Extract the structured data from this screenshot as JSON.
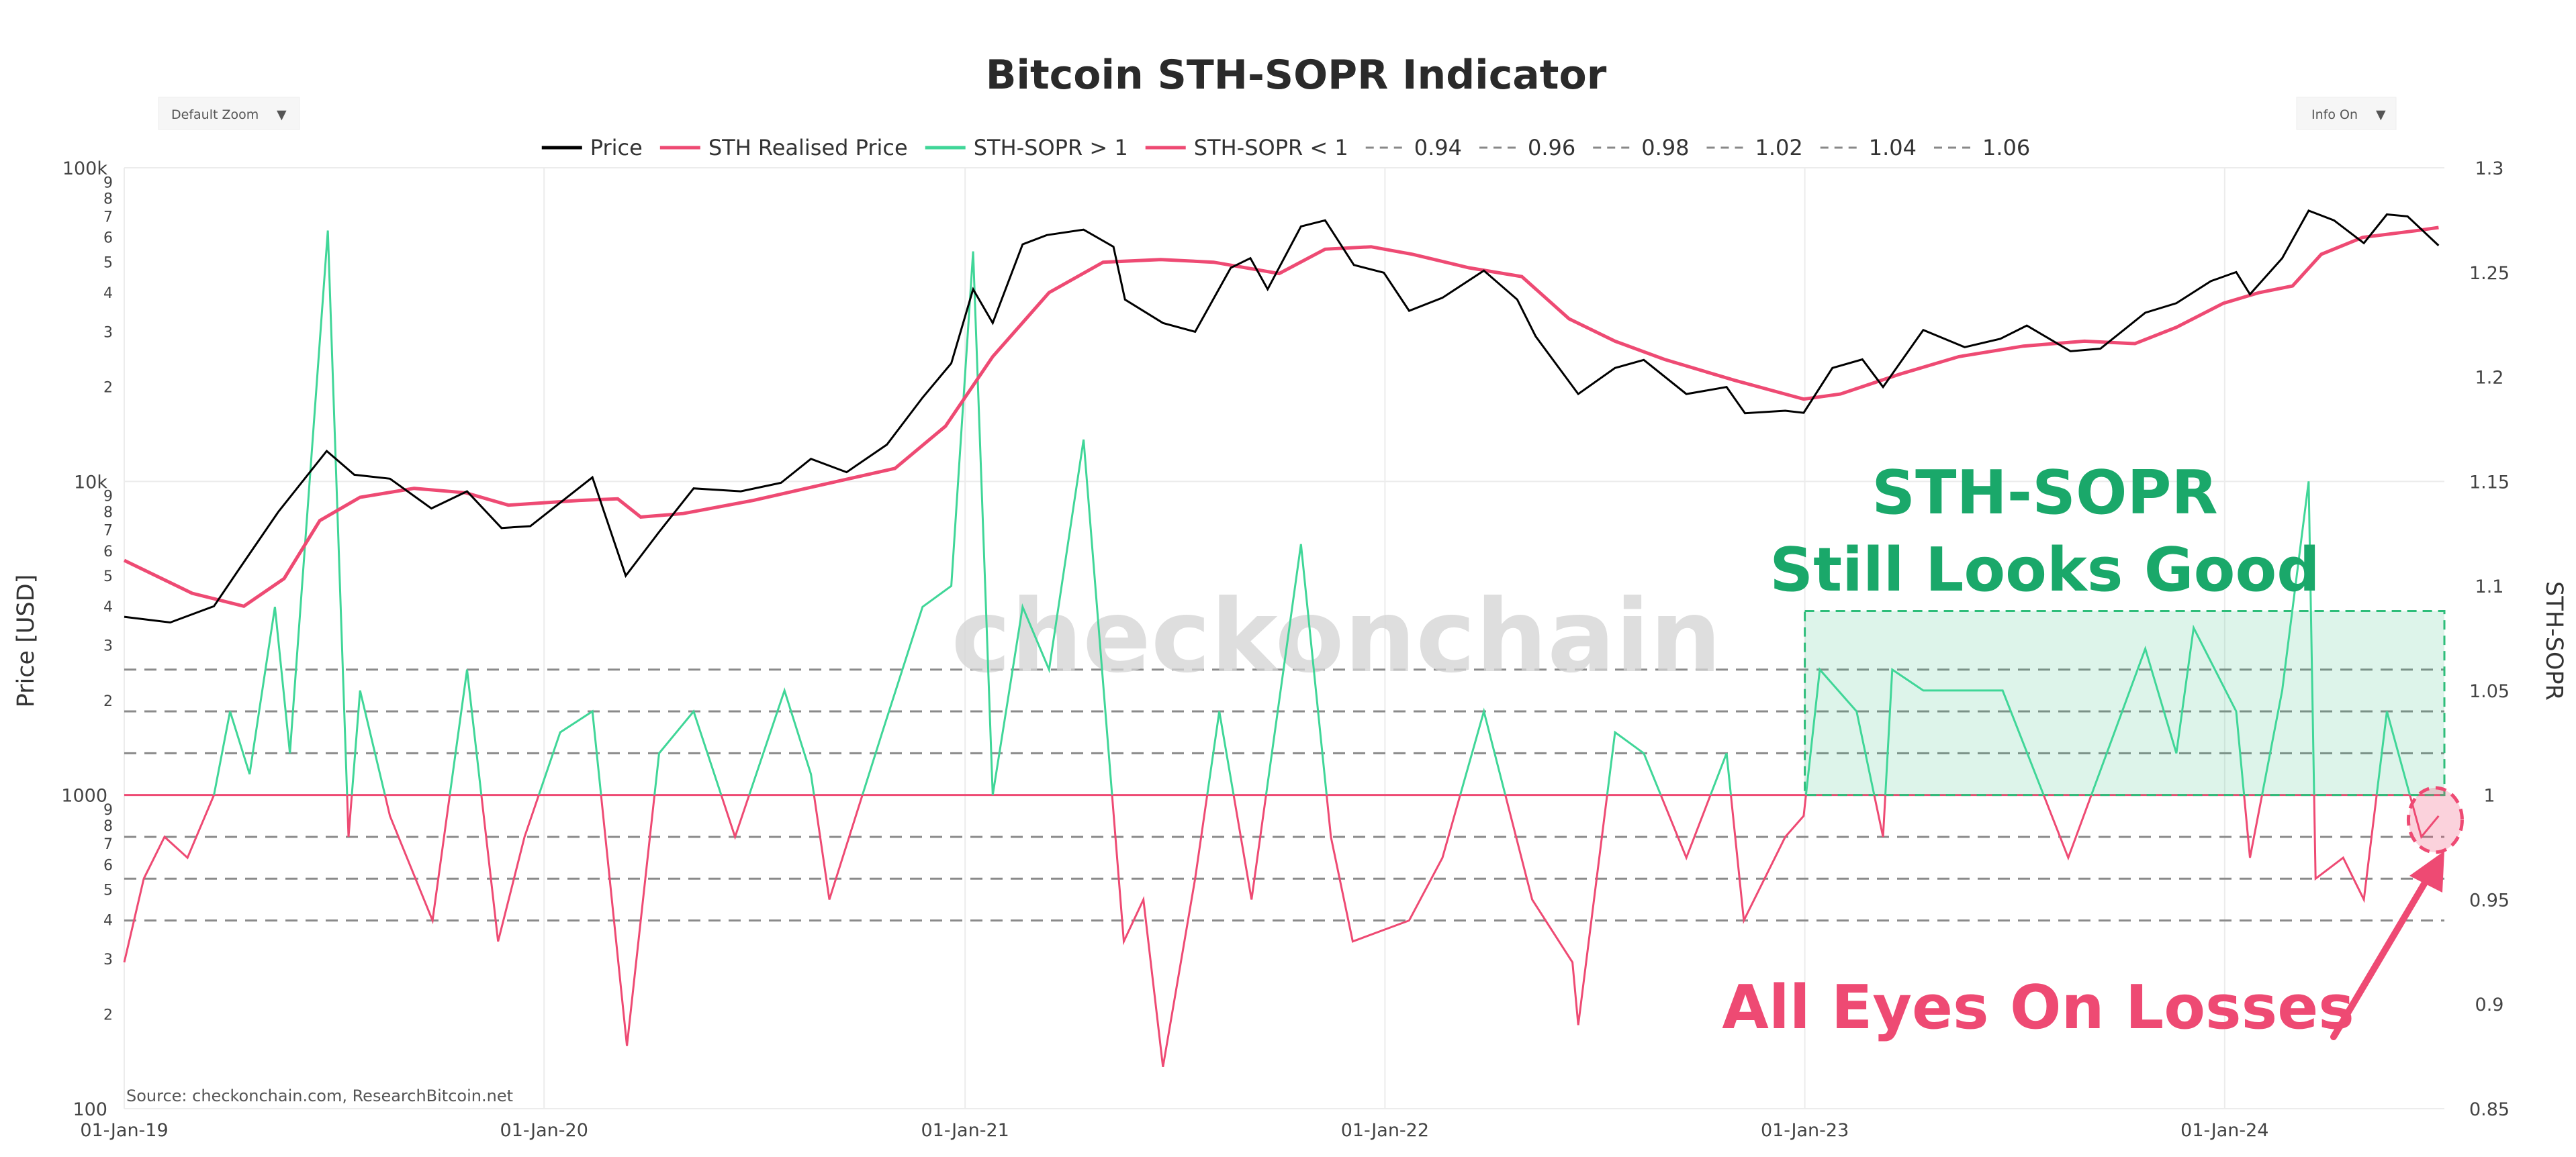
{
  "chart_data": {
    "type": "line",
    "title": "Bitcoin STH-SOPR Indicator",
    "controls": {
      "zoom_label": "Default Zoom",
      "info_label": "Info On"
    },
    "source": "Source: checkonchain.com, ResearchBitcoin.net",
    "watermark": "checkonchain",
    "left_axis": {
      "label": "Price [USD]",
      "scale": "log",
      "range": [
        100,
        100000
      ],
      "major_ticks": [
        "100",
        "1000",
        "10k",
        "100k"
      ],
      "minor_ticks": [
        "2",
        "3",
        "4",
        "5",
        "6",
        "7",
        "8",
        "9"
      ]
    },
    "right_axis": {
      "label": "STH-SOPR",
      "range": [
        0.85,
        1.3
      ],
      "ticks": [
        "0.85",
        "0.9",
        "0.95",
        "1",
        "1.05",
        "1.1",
        "1.15",
        "1.2",
        "1.25",
        "1.3"
      ]
    },
    "x_axis": {
      "range": [
        "2019-01-01",
        "2024-07-10"
      ],
      "ticks": [
        "01-Jan-19",
        "01-Jan-20",
        "01-Jan-21",
        "01-Jan-22",
        "01-Jan-23",
        "01-Jan-24"
      ]
    },
    "legend_position": "top-center",
    "legend": [
      {
        "label": "Price",
        "color": "#000000",
        "style": "solid"
      },
      {
        "label": "STH Realised Price",
        "color": "#ee4a73",
        "style": "solid"
      },
      {
        "label": "STH-SOPR > 1",
        "color": "#40d698",
        "style": "solid"
      },
      {
        "label": "STH-SOPR < 1",
        "color": "#ee4a73",
        "style": "solid"
      },
      {
        "label": "0.94",
        "color": "#888888",
        "style": "dash"
      },
      {
        "label": "0.96",
        "color": "#888888",
        "style": "dash"
      },
      {
        "label": "0.98",
        "color": "#888888",
        "style": "dash"
      },
      {
        "label": "1.02",
        "color": "#888888",
        "style": "dash"
      },
      {
        "label": "1.04",
        "color": "#888888",
        "style": "dash"
      },
      {
        "label": "1.06",
        "color": "#888888",
        "style": "dash"
      }
    ],
    "reference_levels": [
      0.94,
      0.96,
      0.98,
      1.02,
      1.04,
      1.06
    ],
    "series": [
      {
        "name": "Price",
        "axis": "left",
        "points": [
          [
            "2019-01-01",
            3700
          ],
          [
            "2019-02-10",
            3550
          ],
          [
            "2019-03-20",
            4000
          ],
          [
            "2019-04-10",
            5200
          ],
          [
            "2019-05-15",
            8000
          ],
          [
            "2019-06-26",
            12500
          ],
          [
            "2019-07-20",
            10500
          ],
          [
            "2019-08-20",
            10200
          ],
          [
            "2019-09-25",
            8200
          ],
          [
            "2019-10-26",
            9300
          ],
          [
            "2019-11-25",
            7100
          ],
          [
            "2019-12-20",
            7200
          ],
          [
            "2020-02-12",
            10300
          ],
          [
            "2020-03-12",
            5000
          ],
          [
            "2020-04-10",
            6900
          ],
          [
            "2020-05-10",
            9500
          ],
          [
            "2020-06-20",
            9300
          ],
          [
            "2020-07-25",
            9900
          ],
          [
            "2020-08-20",
            11800
          ],
          [
            "2020-09-20",
            10700
          ],
          [
            "2020-10-25",
            13100
          ],
          [
            "2020-11-25",
            18500
          ],
          [
            "2020-12-20",
            23800
          ],
          [
            "2021-01-08",
            41000
          ],
          [
            "2021-01-25",
            32000
          ],
          [
            "2021-02-20",
            57000
          ],
          [
            "2021-03-13",
            61000
          ],
          [
            "2021-04-14",
            63500
          ],
          [
            "2021-05-10",
            56000
          ],
          [
            "2021-05-20",
            38000
          ],
          [
            "2021-06-22",
            32000
          ],
          [
            "2021-07-20",
            30000
          ],
          [
            "2021-08-20",
            48000
          ],
          [
            "2021-09-06",
            51500
          ],
          [
            "2021-09-21",
            41000
          ],
          [
            "2021-10-20",
            65000
          ],
          [
            "2021-11-10",
            68000
          ],
          [
            "2021-12-05",
            49000
          ],
          [
            "2021-12-31",
            46300
          ],
          [
            "2022-01-22",
            35000
          ],
          [
            "2022-02-20",
            38500
          ],
          [
            "2022-03-28",
            47000
          ],
          [
            "2022-04-26",
            38000
          ],
          [
            "2022-05-12",
            29000
          ],
          [
            "2022-06-18",
            19000
          ],
          [
            "2022-07-20",
            23000
          ],
          [
            "2022-08-14",
            24400
          ],
          [
            "2022-09-20",
            19000
          ],
          [
            "2022-10-25",
            20000
          ],
          [
            "2022-11-10",
            16500
          ],
          [
            "2022-12-15",
            16800
          ],
          [
            "2022-12-31",
            16550
          ],
          [
            "2023-01-25",
            23000
          ],
          [
            "2023-02-20",
            24500
          ],
          [
            "2023-03-10",
            20000
          ],
          [
            "2023-04-14",
            30400
          ],
          [
            "2023-05-20",
            26800
          ],
          [
            "2023-06-20",
            28500
          ],
          [
            "2023-07-13",
            31400
          ],
          [
            "2023-08-20",
            26000
          ],
          [
            "2023-09-15",
            26500
          ],
          [
            "2023-10-24",
            34500
          ],
          [
            "2023-11-20",
            37000
          ],
          [
            "2023-12-20",
            43500
          ],
          [
            "2024-01-11",
            46500
          ],
          [
            "2024-01-23",
            39500
          ],
          [
            "2024-02-20",
            51500
          ],
          [
            "2024-03-14",
            73000
          ],
          [
            "2024-04-05",
            68000
          ],
          [
            "2024-05-01",
            57500
          ],
          [
            "2024-05-21",
            71000
          ],
          [
            "2024-06-08",
            70000
          ],
          [
            "2024-07-05",
            56500
          ]
        ]
      },
      {
        "name": "STH Realised Price",
        "axis": "left",
        "points": [
          [
            "2019-01-01",
            5600
          ],
          [
            "2019-03-01",
            4400
          ],
          [
            "2019-04-15",
            4000
          ],
          [
            "2019-05-20",
            4900
          ],
          [
            "2019-06-20",
            7500
          ],
          [
            "2019-07-25",
            8900
          ],
          [
            "2019-09-10",
            9500
          ],
          [
            "2019-10-25",
            9200
          ],
          [
            "2019-12-01",
            8400
          ],
          [
            "2020-02-01",
            8700
          ],
          [
            "2020-03-05",
            8800
          ],
          [
            "2020-03-25",
            7700
          ],
          [
            "2020-05-01",
            7900
          ],
          [
            "2020-07-01",
            8700
          ],
          [
            "2020-09-01",
            9800
          ],
          [
            "2020-11-01",
            11000
          ],
          [
            "2020-12-15",
            15000
          ],
          [
            "2021-01-25",
            25000
          ],
          [
            "2021-03-15",
            40000
          ],
          [
            "2021-05-01",
            50000
          ],
          [
            "2021-06-20",
            51000
          ],
          [
            "2021-08-05",
            50000
          ],
          [
            "2021-10-01",
            46000
          ],
          [
            "2021-11-10",
            55000
          ],
          [
            "2021-12-20",
            56000
          ],
          [
            "2022-01-25",
            53000
          ],
          [
            "2022-03-15",
            48000
          ],
          [
            "2022-04-30",
            45000
          ],
          [
            "2022-06-10",
            33000
          ],
          [
            "2022-07-20",
            28000
          ],
          [
            "2022-09-01",
            24500
          ],
          [
            "2022-11-01",
            21000
          ],
          [
            "2022-12-31",
            18300
          ],
          [
            "2023-02-01",
            19000
          ],
          [
            "2023-03-25",
            22000
          ],
          [
            "2023-05-15",
            25000
          ],
          [
            "2023-07-10",
            27000
          ],
          [
            "2023-09-01",
            28000
          ],
          [
            "2023-10-15",
            27500
          ],
          [
            "2023-11-20",
            31000
          ],
          [
            "2023-12-31",
            37000
          ],
          [
            "2024-01-31",
            40000
          ],
          [
            "2024-02-29",
            42000
          ],
          [
            "2024-03-25",
            53000
          ],
          [
            "2024-04-30",
            60000
          ],
          [
            "2024-06-15",
            63000
          ],
          [
            "2024-07-05",
            64500
          ]
        ]
      },
      {
        "name": "STH-SOPR",
        "axis": "right",
        "color_above_1": "#40d698",
        "color_below_1": "#ee4a73",
        "points": [
          [
            "2019-01-01",
            0.92
          ],
          [
            "2019-01-18",
            0.96
          ],
          [
            "2019-02-05",
            0.98
          ],
          [
            "2019-02-25",
            0.97
          ],
          [
            "2019-03-20",
            1.0
          ],
          [
            "2019-04-03",
            1.04
          ],
          [
            "2019-04-20",
            1.01
          ],
          [
            "2019-05-12",
            1.09
          ],
          [
            "2019-05-25",
            1.02
          ],
          [
            "2019-06-27",
            1.27
          ],
          [
            "2019-07-15",
            0.98
          ],
          [
            "2019-07-25",
            1.05
          ],
          [
            "2019-08-20",
            0.99
          ],
          [
            "2019-09-26",
            0.94
          ],
          [
            "2019-10-26",
            1.06
          ],
          [
            "2019-11-22",
            0.93
          ],
          [
            "2019-12-15",
            0.98
          ],
          [
            "2020-01-15",
            1.03
          ],
          [
            "2020-02-12",
            1.04
          ],
          [
            "2020-03-13",
            0.88
          ],
          [
            "2020-04-10",
            1.02
          ],
          [
            "2020-05-10",
            1.04
          ],
          [
            "2020-06-15",
            0.98
          ],
          [
            "2020-07-28",
            1.05
          ],
          [
            "2020-08-20",
            1.01
          ],
          [
            "2020-09-05",
            0.95
          ],
          [
            "2020-10-21",
            1.03
          ],
          [
            "2020-11-25",
            1.09
          ],
          [
            "2020-12-20",
            1.1
          ],
          [
            "2021-01-08",
            1.26
          ],
          [
            "2021-01-25",
            1.0
          ],
          [
            "2021-02-20",
            1.09
          ],
          [
            "2021-03-15",
            1.06
          ],
          [
            "2021-04-14",
            1.17
          ],
          [
            "2021-05-19",
            0.93
          ],
          [
            "2021-06-05",
            0.95
          ],
          [
            "2021-06-22",
            0.87
          ],
          [
            "2021-07-20",
            0.96
          ],
          [
            "2021-08-10",
            1.04
          ],
          [
            "2021-09-07",
            0.95
          ],
          [
            "2021-10-20",
            1.12
          ],
          [
            "2021-11-15",
            0.98
          ],
          [
            "2021-12-04",
            0.93
          ],
          [
            "2022-01-22",
            0.94
          ],
          [
            "2022-02-20",
            0.97
          ],
          [
            "2022-03-28",
            1.04
          ],
          [
            "2022-05-09",
            0.95
          ],
          [
            "2022-06-13",
            0.92
          ],
          [
            "2022-06-18",
            0.89
          ],
          [
            "2022-07-20",
            1.03
          ],
          [
            "2022-08-14",
            1.02
          ],
          [
            "2022-09-20",
            0.97
          ],
          [
            "2022-10-25",
            1.02
          ],
          [
            "2022-11-09",
            0.94
          ],
          [
            "2022-12-15",
            0.98
          ],
          [
            "2022-12-31",
            0.99
          ],
          [
            "2023-01-14",
            1.06
          ],
          [
            "2023-02-15",
            1.04
          ],
          [
            "2023-03-10",
            0.98
          ],
          [
            "2023-03-18",
            1.06
          ],
          [
            "2023-04-14",
            1.05
          ],
          [
            "2023-06-22",
            1.05
          ],
          [
            "2023-08-18",
            0.97
          ],
          [
            "2023-10-24",
            1.07
          ],
          [
            "2023-11-20",
            1.02
          ],
          [
            "2023-12-05",
            1.08
          ],
          [
            "2024-01-11",
            1.04
          ],
          [
            "2024-01-23",
            0.97
          ],
          [
            "2024-02-20",
            1.05
          ],
          [
            "2024-03-14",
            1.15
          ],
          [
            "2024-03-20",
            0.96
          ],
          [
            "2024-04-13",
            0.97
          ],
          [
            "2024-05-01",
            0.95
          ],
          [
            "2024-05-21",
            1.04
          ],
          [
            "2024-06-20",
            0.98
          ],
          [
            "2024-07-05",
            0.99
          ]
        ]
      }
    ],
    "annotations": [
      {
        "text": "STH-SOPR",
        "color": "#1aa86a"
      },
      {
        "text": "Still Looks Good",
        "color": "#1aa86a"
      },
      {
        "text": "All Eyes On Losses",
        "color": "#ee4a73"
      }
    ],
    "highlight_region": {
      "from": "2023-01-01",
      "to": "2024-07-10",
      "y_from": 1.0,
      "y_to": 1.088,
      "color": "#2ebd7a"
    },
    "highlight_circle": {
      "date": "2024-07-05",
      "value": 0.99,
      "color": "#ee4a73"
    }
  }
}
